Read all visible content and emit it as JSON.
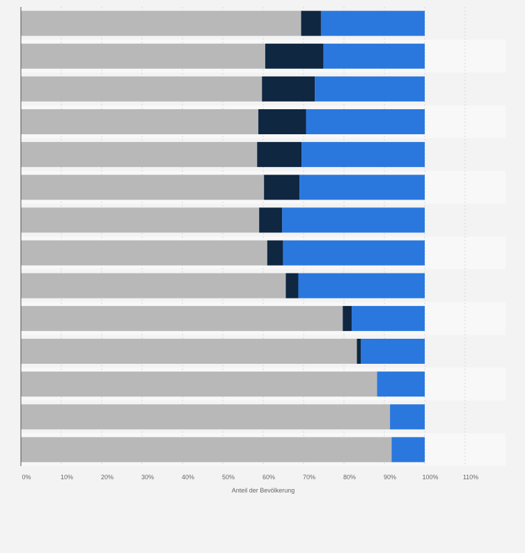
{
  "chart_data": {
    "type": "bar",
    "orientation": "horizontal",
    "stacked": true,
    "title": "",
    "xlabel": "Anteil der Bevölkerung",
    "ylabel": "",
    "xlim": [
      0,
      1.2
    ],
    "x_ticks": [
      {
        "value": 0,
        "label": "0%"
      },
      {
        "value": 0.1,
        "label": "10%"
      },
      {
        "value": 0.2,
        "label": "20%"
      },
      {
        "value": 0.3,
        "label": "30%"
      },
      {
        "value": 0.4,
        "label": "40%"
      },
      {
        "value": 0.5,
        "label": "50%"
      },
      {
        "value": 0.6,
        "label": "60%"
      },
      {
        "value": 0.7,
        "label": "70%"
      },
      {
        "value": 0.8,
        "label": "80%"
      },
      {
        "value": 0.9,
        "label": "90%"
      },
      {
        "value": 1.0,
        "label": "100%"
      },
      {
        "value": 1.1,
        "label": "110%"
      }
    ],
    "grid": true,
    "categories": [
      "",
      "",
      "",
      "",
      "",
      "",
      "",
      "",
      "",
      "",
      "",
      "",
      "",
      ""
    ],
    "series": [
      {
        "color": "#b8b8b8",
        "values": [
          0.694,
          0.605,
          0.597,
          0.588,
          0.585,
          0.602,
          0.59,
          0.61,
          0.656,
          0.797,
          0.832,
          0.882,
          0.914,
          0.918
        ]
      },
      {
        "color": "#0f2741",
        "values": [
          0.049,
          0.144,
          0.131,
          0.118,
          0.11,
          0.088,
          0.057,
          0.039,
          0.031,
          0.022,
          0.01,
          0.0,
          0.0,
          0.0
        ]
      },
      {
        "color": "#2a78de",
        "values": [
          0.257,
          0.251,
          0.272,
          0.294,
          0.305,
          0.31,
          0.353,
          0.351,
          0.313,
          0.181,
          0.158,
          0.118,
          0.086,
          0.082
        ]
      }
    ]
  }
}
